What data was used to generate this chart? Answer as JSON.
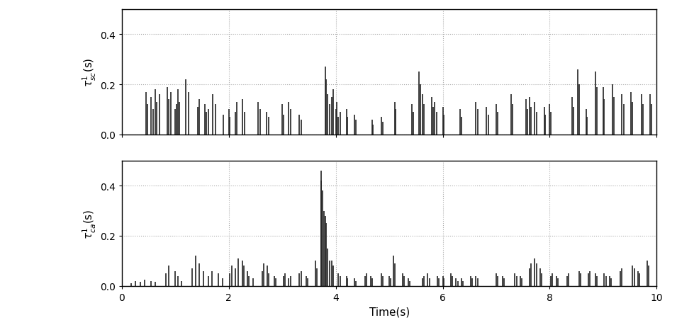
{
  "xlabel": "Time(s)",
  "ylabel_sc": "$\\tau^1_{sc}$(s)",
  "ylabel_ca": "$\\tau^1_{ca}$(s)",
  "xlim": [
    0,
    10
  ],
  "ylim_sc": [
    0,
    0.5
  ],
  "ylim_ca": [
    0,
    0.5
  ],
  "yticks_sc": [
    0,
    0.2,
    0.4
  ],
  "yticks_ca": [
    0,
    0.2,
    0.4
  ],
  "xticks": [
    0,
    2,
    4,
    6,
    8,
    10
  ],
  "grid_color": "#aaaaaa",
  "line_color": "#222222",
  "background_color": "#ffffff",
  "fig_background": "#ffffff",
  "sc_times": [
    0.45,
    0.48,
    0.55,
    0.58,
    0.62,
    0.65,
    0.7,
    0.85,
    0.88,
    0.92,
    1.0,
    1.02,
    1.05,
    1.08,
    1.2,
    1.25,
    1.42,
    1.45,
    1.55,
    1.58,
    1.62,
    1.7,
    1.75,
    1.9,
    2.0,
    2.02,
    2.12,
    2.15,
    2.25,
    2.3,
    2.55,
    2.58,
    2.7,
    2.75,
    3.0,
    3.02,
    3.12,
    3.15,
    3.32,
    3.35,
    3.8,
    3.82,
    3.85,
    3.88,
    3.92,
    3.95,
    4.0,
    4.02,
    4.05,
    4.08,
    4.2,
    4.22,
    4.35,
    4.38,
    4.68,
    4.7,
    4.85,
    4.88,
    5.1,
    5.12,
    5.42,
    5.45,
    5.55,
    5.58,
    5.62,
    5.65,
    5.8,
    5.82,
    5.85,
    5.88,
    6.0,
    6.02,
    6.32,
    6.35,
    6.62,
    6.65,
    6.82,
    6.85,
    7.0,
    7.02,
    7.28,
    7.3,
    7.55,
    7.58,
    7.62,
    7.65,
    7.72,
    7.75,
    7.9,
    7.92,
    8.0,
    8.02,
    8.42,
    8.45,
    8.52,
    8.55,
    8.68,
    8.7,
    8.85,
    8.88,
    9.0,
    9.02,
    9.18,
    9.2,
    9.35,
    9.38,
    9.52,
    9.55,
    9.72,
    9.75,
    9.88,
    9.9
  ],
  "sc_heights": [
    0.17,
    0.12,
    0.15,
    0.1,
    0.18,
    0.13,
    0.16,
    0.19,
    0.14,
    0.17,
    0.1,
    0.12,
    0.18,
    0.13,
    0.22,
    0.17,
    0.11,
    0.14,
    0.12,
    0.09,
    0.1,
    0.16,
    0.12,
    0.08,
    0.1,
    0.07,
    0.09,
    0.13,
    0.14,
    0.09,
    0.13,
    0.1,
    0.09,
    0.07,
    0.12,
    0.08,
    0.13,
    0.1,
    0.08,
    0.06,
    0.27,
    0.22,
    0.16,
    0.12,
    0.15,
    0.18,
    0.1,
    0.13,
    0.07,
    0.09,
    0.1,
    0.07,
    0.08,
    0.06,
    0.06,
    0.04,
    0.07,
    0.05,
    0.13,
    0.1,
    0.12,
    0.09,
    0.25,
    0.2,
    0.16,
    0.12,
    0.15,
    0.11,
    0.13,
    0.09,
    0.11,
    0.08,
    0.1,
    0.07,
    0.13,
    0.1,
    0.11,
    0.08,
    0.12,
    0.09,
    0.16,
    0.12,
    0.14,
    0.1,
    0.15,
    0.11,
    0.13,
    0.09,
    0.11,
    0.08,
    0.12,
    0.09,
    0.15,
    0.11,
    0.26,
    0.2,
    0.1,
    0.07,
    0.25,
    0.19,
    0.19,
    0.14,
    0.2,
    0.15,
    0.16,
    0.12,
    0.17,
    0.13,
    0.16,
    0.12,
    0.16,
    0.12
  ],
  "ca_times": [
    0.18,
    0.25,
    0.35,
    0.42,
    0.55,
    0.62,
    0.82,
    0.88,
    1.0,
    1.05,
    1.12,
    1.32,
    1.38,
    1.45,
    1.52,
    1.62,
    1.68,
    1.8,
    1.88,
    2.02,
    2.05,
    2.12,
    2.18,
    2.25,
    2.28,
    2.35,
    2.38,
    2.45,
    2.62,
    2.65,
    2.72,
    2.75,
    2.85,
    2.88,
    3.02,
    3.05,
    3.12,
    3.15,
    3.32,
    3.35,
    3.45,
    3.48,
    3.62,
    3.65,
    3.72,
    3.73,
    3.75,
    3.78,
    3.8,
    3.82,
    3.85,
    3.88,
    3.92,
    3.95,
    4.05,
    4.08,
    4.2,
    4.22,
    4.35,
    4.38,
    4.55,
    4.58,
    4.65,
    4.68,
    4.85,
    4.88,
    5.0,
    5.02,
    5.08,
    5.1,
    5.25,
    5.28,
    5.35,
    5.38,
    5.62,
    5.65,
    5.72,
    5.75,
    5.9,
    5.92,
    6.0,
    6.02,
    6.15,
    6.18,
    6.25,
    6.28,
    6.35,
    6.38,
    6.52,
    6.55,
    6.62,
    6.65,
    7.0,
    7.02,
    7.12,
    7.15,
    7.35,
    7.38,
    7.45,
    7.48,
    7.62,
    7.65,
    7.72,
    7.75,
    7.82,
    7.85,
    8.02,
    8.05,
    8.12,
    8.15,
    8.32,
    8.35,
    8.55,
    8.58,
    8.72,
    8.75,
    8.85,
    8.88,
    9.02,
    9.05,
    9.12,
    9.15,
    9.32,
    9.35,
    9.55,
    9.58,
    9.65,
    9.68,
    9.82,
    9.85
  ],
  "ca_heights": [
    0.01,
    0.02,
    0.015,
    0.025,
    0.02,
    0.015,
    0.05,
    0.08,
    0.06,
    0.04,
    0.02,
    0.07,
    0.12,
    0.09,
    0.06,
    0.04,
    0.06,
    0.05,
    0.03,
    0.05,
    0.08,
    0.07,
    0.11,
    0.1,
    0.08,
    0.06,
    0.04,
    0.03,
    0.06,
    0.09,
    0.08,
    0.05,
    0.04,
    0.03,
    0.04,
    0.05,
    0.03,
    0.04,
    0.05,
    0.06,
    0.04,
    0.03,
    0.1,
    0.07,
    0.46,
    0.42,
    0.38,
    0.3,
    0.28,
    0.25,
    0.15,
    0.1,
    0.1,
    0.08,
    0.05,
    0.04,
    0.04,
    0.03,
    0.03,
    0.02,
    0.04,
    0.05,
    0.04,
    0.03,
    0.05,
    0.04,
    0.04,
    0.03,
    0.12,
    0.09,
    0.05,
    0.04,
    0.03,
    0.02,
    0.03,
    0.04,
    0.05,
    0.03,
    0.04,
    0.03,
    0.04,
    0.03,
    0.05,
    0.04,
    0.03,
    0.02,
    0.03,
    0.02,
    0.04,
    0.03,
    0.04,
    0.03,
    0.05,
    0.04,
    0.04,
    0.03,
    0.05,
    0.04,
    0.04,
    0.03,
    0.07,
    0.09,
    0.11,
    0.09,
    0.07,
    0.05,
    0.04,
    0.05,
    0.04,
    0.03,
    0.04,
    0.05,
    0.06,
    0.05,
    0.05,
    0.06,
    0.05,
    0.04,
    0.05,
    0.04,
    0.04,
    0.03,
    0.06,
    0.07,
    0.08,
    0.07,
    0.06,
    0.05,
    0.1,
    0.08
  ]
}
